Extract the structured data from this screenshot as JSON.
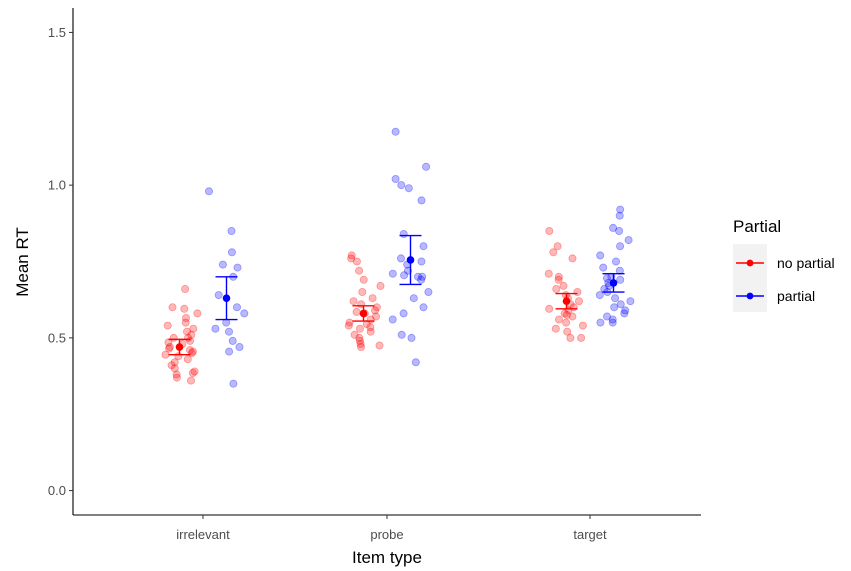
{
  "chart_data": {
    "type": "scatter",
    "xlabel": "Item type",
    "ylabel": "Mean RT",
    "categories": [
      "irrelevant",
      "probe",
      "target"
    ],
    "ylim": [
      -0.08,
      1.58
    ],
    "yticks": [
      "0.0",
      "0.5",
      "1.0",
      "1.5"
    ],
    "grid": false,
    "legend": {
      "title": "Partial",
      "placement": "right",
      "entries": [
        "no partial",
        "partial"
      ]
    },
    "series": [
      {
        "name": "no partial",
        "color": "#ff0000",
        "summary": [
          {
            "category": "irrelevant",
            "mean": 0.47,
            "lower": 0.445,
            "upper": 0.495
          },
          {
            "category": "probe",
            "mean": 0.58,
            "lower": 0.555,
            "upper": 0.605
          },
          {
            "category": "target",
            "mean": 0.62,
            "lower": 0.595,
            "upper": 0.645
          }
        ],
        "points": {
          "irrelevant": [
            0.66,
            0.6,
            0.595,
            0.58,
            0.565,
            0.55,
            0.54,
            0.53,
            0.52,
            0.51,
            0.5,
            0.5,
            0.49,
            0.485,
            0.48,
            0.47,
            0.465,
            0.46,
            0.455,
            0.45,
            0.445,
            0.44,
            0.43,
            0.42,
            0.41,
            0.4,
            0.39,
            0.385,
            0.38,
            0.37,
            0.36
          ],
          "probe": [
            0.77,
            0.76,
            0.75,
            0.72,
            0.69,
            0.67,
            0.65,
            0.63,
            0.62,
            0.61,
            0.6,
            0.59,
            0.585,
            0.58,
            0.57,
            0.56,
            0.55,
            0.545,
            0.54,
            0.535,
            0.53,
            0.52,
            0.51,
            0.5,
            0.49,
            0.48,
            0.475,
            0.47
          ],
          "target": [
            0.85,
            0.8,
            0.78,
            0.76,
            0.71,
            0.7,
            0.69,
            0.67,
            0.66,
            0.65,
            0.64,
            0.63,
            0.62,
            0.61,
            0.6,
            0.595,
            0.59,
            0.58,
            0.575,
            0.57,
            0.56,
            0.55,
            0.54,
            0.53,
            0.52,
            0.5,
            0.5
          ]
        }
      },
      {
        "name": "partial",
        "color": "#0000ff",
        "summary": [
          {
            "category": "irrelevant",
            "mean": 0.63,
            "lower": 0.56,
            "upper": 0.7
          },
          {
            "category": "probe",
            "mean": 0.755,
            "lower": 0.675,
            "upper": 0.835
          },
          {
            "category": "target",
            "mean": 0.68,
            "lower": 0.65,
            "upper": 0.71
          }
        ],
        "points": {
          "irrelevant": [
            0.98,
            0.85,
            0.78,
            0.74,
            0.73,
            0.7,
            0.64,
            0.6,
            0.58,
            0.55,
            0.53,
            0.52,
            0.49,
            0.47,
            0.455,
            0.35
          ],
          "probe": [
            1.175,
            1.06,
            1.02,
            1.0,
            0.99,
            0.95,
            0.84,
            0.8,
            0.76,
            0.75,
            0.74,
            0.72,
            0.71,
            0.705,
            0.7,
            0.7,
            0.69,
            0.65,
            0.63,
            0.6,
            0.58,
            0.56,
            0.51,
            0.5,
            0.42
          ],
          "target": [
            0.92,
            0.9,
            0.86,
            0.85,
            0.82,
            0.8,
            0.77,
            0.75,
            0.73,
            0.72,
            0.7,
            0.695,
            0.69,
            0.68,
            0.67,
            0.66,
            0.65,
            0.64,
            0.63,
            0.62,
            0.61,
            0.6,
            0.59,
            0.58,
            0.57,
            0.56,
            0.55,
            0.55
          ]
        }
      }
    ]
  }
}
